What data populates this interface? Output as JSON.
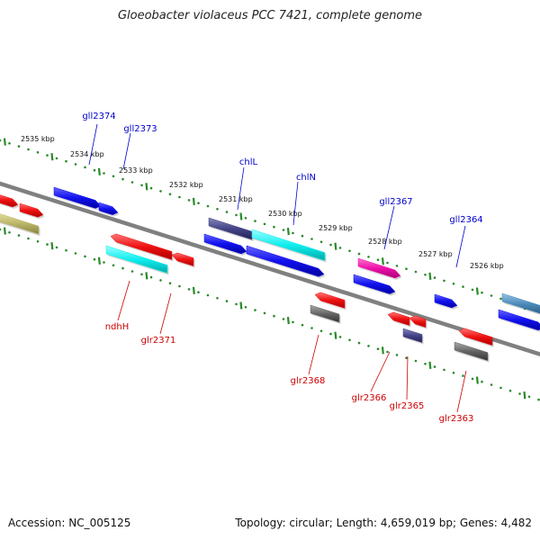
{
  "title": "Gloeobacter violaceus PCC 7421, complete genome",
  "footer": {
    "accession": "Accession: NC_005125",
    "topology": "Topology: circular; Length: 4,659,019 bp; Genes: 4,482"
  },
  "scale_labels": [
    "2535 kbp",
    "2534 kbp",
    "2533 kbp",
    "2532 kbp",
    "2531 kbp",
    "2530 kbp",
    "2529 kbp",
    "2528 kbp",
    "2527 kbp",
    "2526 kbp"
  ],
  "gene_labels_forward": [
    "gll2374",
    "gll2373",
    "chlL",
    "chlN",
    "gll2367",
    "gll2364"
  ],
  "gene_labels_reverse": [
    "ndhH",
    "glr2371",
    "glr2368",
    "glr2366",
    "glr2365",
    "glr2363"
  ],
  "colors": {
    "forward_label": "#0000cc",
    "reverse_label": "#cc0000",
    "backbone": "#808080",
    "tick": "#2a8a2a",
    "red": "#ee1111",
    "blue": "#1111ee",
    "cyan": "#11eeee",
    "navy": "#444488",
    "magenta": "#ee11aa",
    "gray": "#666666",
    "steel": "#4a8ab8",
    "olive": "#bdb76b"
  }
}
